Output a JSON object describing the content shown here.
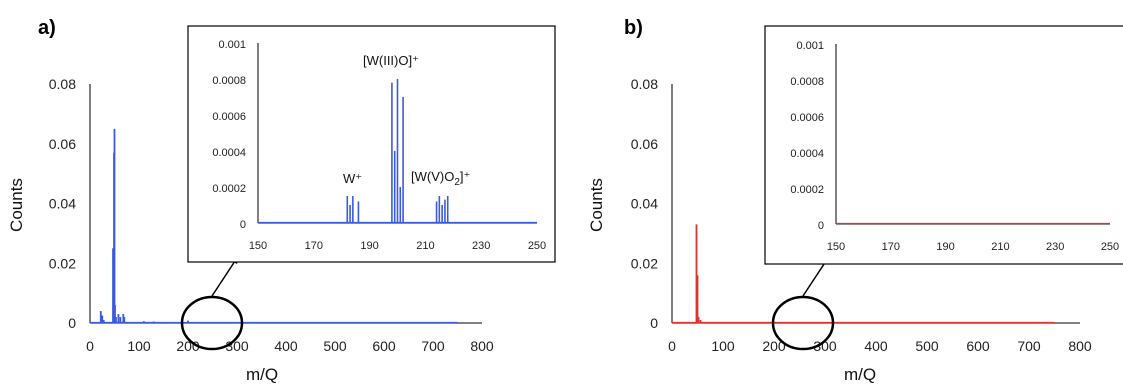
{
  "panels": [
    {
      "label": "a)",
      "color": "#3b5bdb"
    },
    {
      "label": "b)",
      "color": "#e03131"
    }
  ],
  "annotations": {
    "w_plus": "W⁺",
    "w3o": "[W(III)O]⁺",
    "w5o2_pre": "[W(V)O",
    "w5o2_sub": "2",
    "w5o2_post": "]⁺"
  },
  "chart_data": [
    {
      "type": "line",
      "panel": "a)",
      "xlabel": "m/Q",
      "ylabel": "Counts",
      "xlim": [
        0,
        800
      ],
      "ylim": [
        0,
        0.08
      ],
      "xticks": [
        "0",
        "100",
        "200",
        "300",
        "400",
        "500",
        "600",
        "700",
        "800"
      ],
      "yticks": [
        "0",
        "0.02",
        "0.04",
        "0.06",
        "0.08"
      ],
      "color": "#3b5bdb",
      "x_end": 750,
      "peaks": [
        [
          22,
          0.004
        ],
        [
          25,
          0.0025
        ],
        [
          28,
          0.001
        ],
        [
          47,
          0.025
        ],
        [
          49,
          0.057
        ],
        [
          50,
          0.065
        ],
        [
          51,
          0.006
        ],
        [
          53,
          0.002
        ],
        [
          58,
          0.003
        ],
        [
          62,
          0.002
        ],
        [
          68,
          0.003
        ],
        [
          70,
          0.002
        ],
        [
          110,
          0.0006
        ],
        [
          130,
          0.0005
        ],
        [
          200,
          0.0008
        ]
      ]
    },
    {
      "type": "line",
      "panel": "a) inset",
      "xlim": [
        150,
        250
      ],
      "ylim": [
        0,
        0.001
      ],
      "xticks": [
        "150",
        "170",
        "190",
        "210",
        "230",
        "250"
      ],
      "yticks": [
        "0",
        "0.0002",
        "0.0004",
        "0.0006",
        "0.0008",
        "0.001"
      ],
      "color": "#3b5bdb",
      "peaks": [
        [
          182,
          0.00015
        ],
        [
          183,
          0.0001
        ],
        [
          184,
          0.00015
        ],
        [
          186,
          0.00012
        ],
        [
          198,
          0.00078
        ],
        [
          199,
          0.0004
        ],
        [
          200,
          0.0008
        ],
        [
          201,
          0.0002
        ],
        [
          202,
          0.0007
        ],
        [
          214,
          0.00012
        ],
        [
          215,
          0.00015
        ],
        [
          216,
          0.0001
        ],
        [
          217,
          0.00013
        ],
        [
          218,
          0.00015
        ]
      ]
    },
    {
      "type": "line",
      "panel": "b)",
      "xlabel": "m/Q",
      "ylabel": "Counts",
      "xlim": [
        0,
        800
      ],
      "ylim": [
        0,
        0.08
      ],
      "xticks": [
        "0",
        "100",
        "200",
        "300",
        "400",
        "500",
        "600",
        "700",
        "800"
      ],
      "yticks": [
        "0",
        "0.02",
        "0.04",
        "0.06",
        "0.08"
      ],
      "color": "#e03131",
      "x_end": 750,
      "peaks": [
        [
          48,
          0.033
        ],
        [
          49,
          0.005
        ],
        [
          50,
          0.016
        ],
        [
          52,
          0.002
        ],
        [
          56,
          0.001
        ]
      ]
    },
    {
      "type": "line",
      "panel": "b) inset",
      "xlim": [
        150,
        250
      ],
      "ylim": [
        0,
        0.001
      ],
      "xticks": [
        "150",
        "170",
        "190",
        "210",
        "230",
        "250"
      ],
      "yticks": [
        "0",
        "0.0002",
        "0.0004",
        "0.0006",
        "0.0008",
        "0.001"
      ],
      "color": "#e03131",
      "peaks": [
        [
          200,
          5e-06
        ],
        [
          215,
          4e-06
        ]
      ]
    }
  ]
}
